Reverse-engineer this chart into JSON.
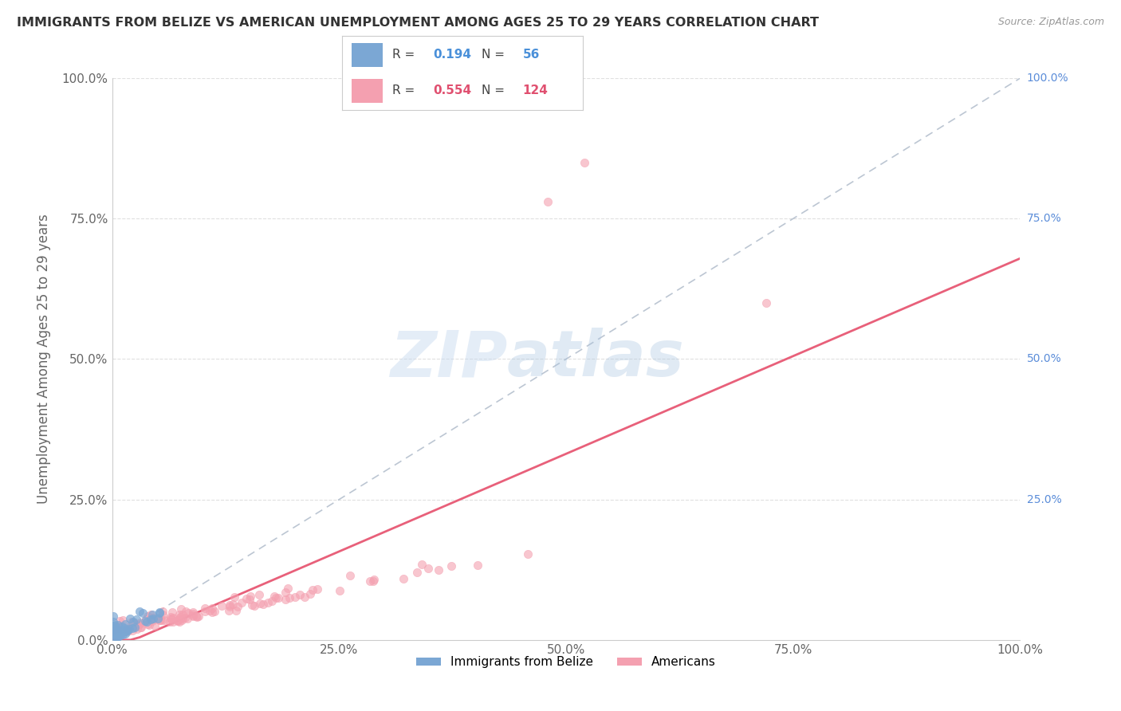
{
  "title": "IMMIGRANTS FROM BELIZE VS AMERICAN UNEMPLOYMENT AMONG AGES 25 TO 29 YEARS CORRELATION CHART",
  "source": "Source: ZipAtlas.com",
  "ylabel": "Unemployment Among Ages 25 to 29 years",
  "xlim": [
    0,
    1
  ],
  "ylim": [
    0,
    1
  ],
  "ytick_labels": [
    "0.0%",
    "25.0%",
    "50.0%",
    "75.0%",
    "100.0%"
  ],
  "ytick_vals": [
    0,
    0.25,
    0.5,
    0.75,
    1.0
  ],
  "xtick_labels": [
    "0.0%",
    "25.0%",
    "50.0%",
    "75.0%",
    "100.0%"
  ],
  "xtick_vals": [
    0,
    0.25,
    0.5,
    0.75,
    1.0
  ],
  "color_blue": "#7ba7d4",
  "color_pink": "#f4a0b0",
  "color_regression_line": "#e8607a",
  "color_diagonal": "#a0aec0",
  "color_grid": "#e0e0e0",
  "color_right_labels": "#5b8dd9",
  "watermark_zip": "ZIP",
  "watermark_atlas": "atlas",
  "blue_seed": 42,
  "pink_seed": 7,
  "blue_n": 56,
  "pink_n": 124,
  "blue_R": 0.194,
  "pink_R": 0.554
}
